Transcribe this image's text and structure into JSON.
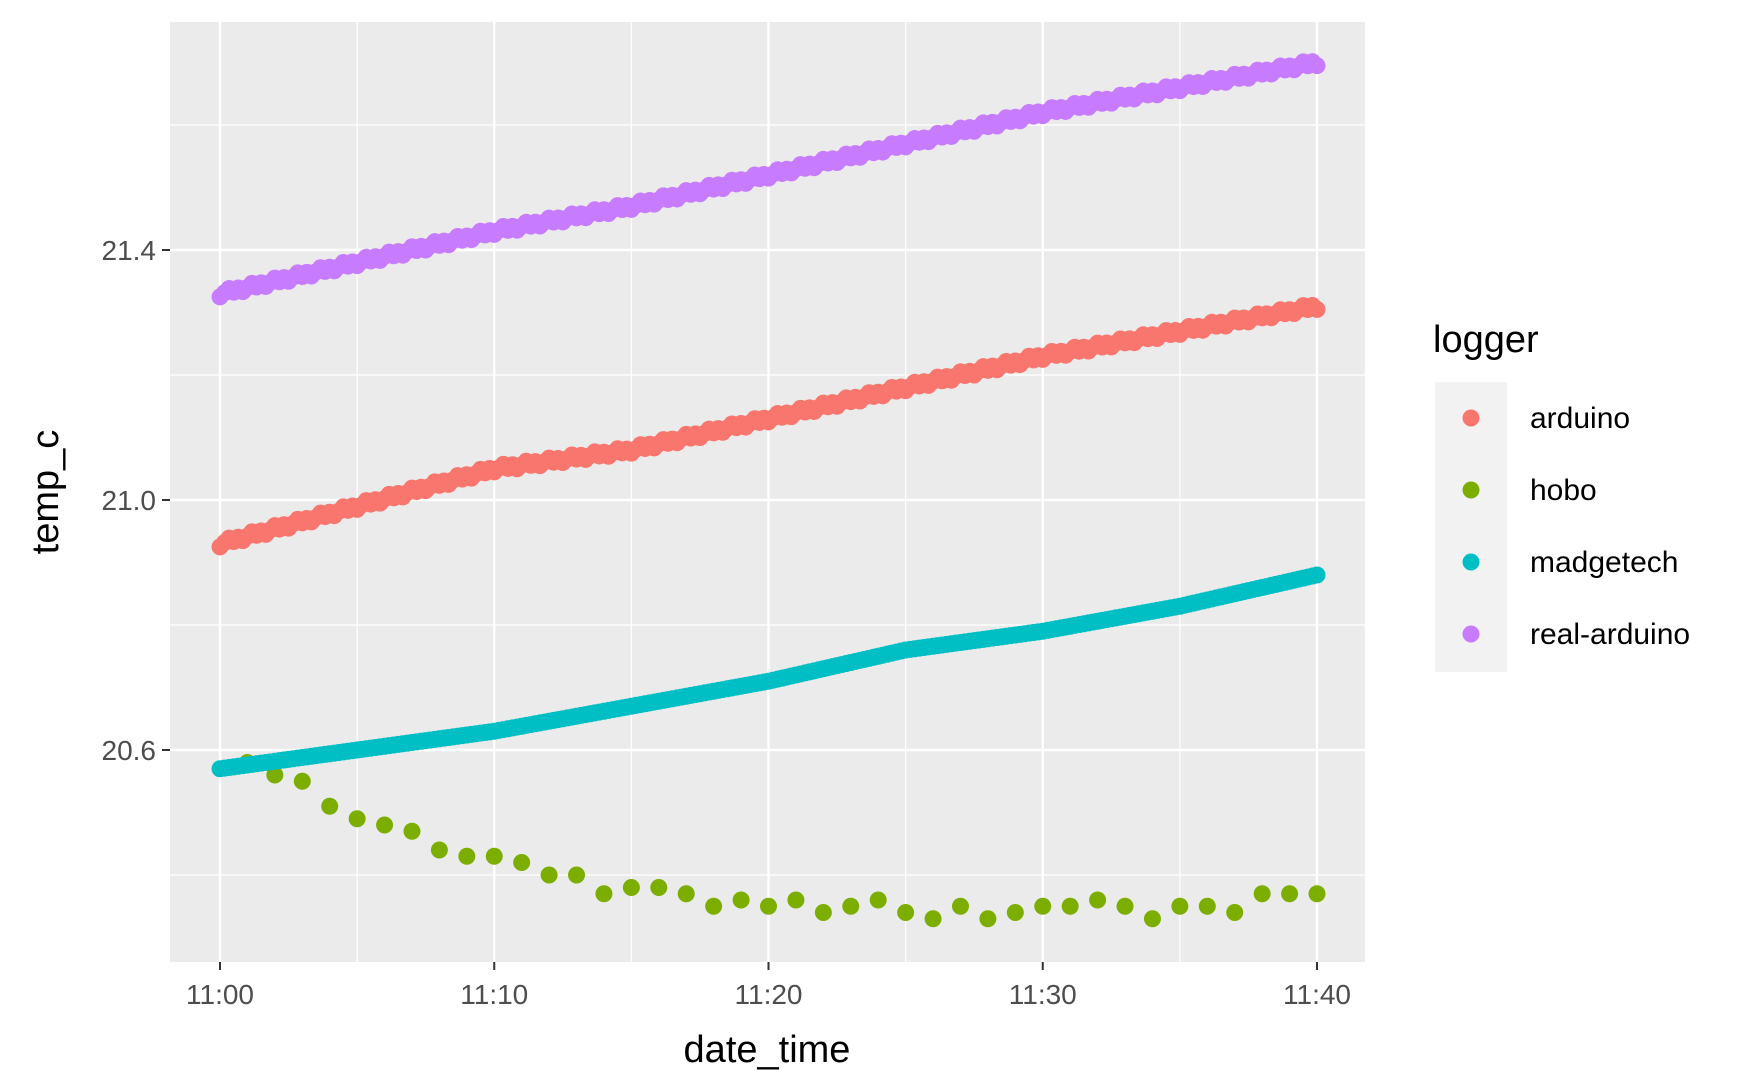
{
  "chart_data": {
    "type": "scatter",
    "title": "",
    "xlabel": "date_time",
    "ylabel": "temp_c",
    "x_ticks": [
      "11:00",
      "11:10",
      "11:20",
      "11:30",
      "11:40"
    ],
    "x_tick_minutes": [
      0,
      10,
      20,
      30,
      40
    ],
    "x_range": [
      "11:00",
      "11:40"
    ],
    "y_ticks": [
      20.6,
      21.0,
      21.4
    ],
    "y_range": [
      20.28,
      21.78
    ],
    "grid": true,
    "legend": {
      "title": "logger",
      "placement": "right",
      "entries": [
        "arduino",
        "hobo",
        "madgetech",
        "real-arduino"
      ]
    },
    "series": [
      {
        "name": "arduino",
        "color": "#F8766D",
        "kind": "dense",
        "x_time": [
          "11:00",
          "11:05",
          "11:10",
          "11:15",
          "11:20",
          "11:25",
          "11:30",
          "11:35",
          "11:40"
        ],
        "y": [
          20.93,
          20.99,
          21.05,
          21.08,
          21.13,
          21.18,
          21.23,
          21.27,
          21.31
        ]
      },
      {
        "name": "hobo",
        "color": "#7CAE00",
        "kind": "sparse",
        "x_time": [
          "11:01",
          "11:02",
          "11:03",
          "11:04",
          "11:05",
          "11:06",
          "11:07",
          "11:08",
          "11:09",
          "11:10",
          "11:11",
          "11:12",
          "11:13",
          "11:14",
          "11:15",
          "11:16",
          "11:17",
          "11:18",
          "11:19",
          "11:20",
          "11:21",
          "11:22",
          "11:23",
          "11:24",
          "11:25",
          "11:26",
          "11:27",
          "11:28",
          "11:29",
          "11:30",
          "11:31",
          "11:32",
          "11:33",
          "11:34",
          "11:35",
          "11:36",
          "11:37",
          "11:38",
          "11:39",
          "11:40"
        ],
        "y": [
          20.58,
          20.56,
          20.55,
          20.51,
          20.49,
          20.48,
          20.47,
          20.44,
          20.43,
          20.43,
          20.42,
          20.4,
          20.4,
          20.37,
          20.38,
          20.38,
          20.37,
          20.35,
          20.36,
          20.35,
          20.36,
          20.34,
          20.35,
          20.36,
          20.34,
          20.33,
          20.35,
          20.33,
          20.34,
          20.35,
          20.35,
          20.36,
          20.35,
          20.33,
          20.35,
          20.35,
          20.34,
          20.37,
          20.37,
          20.37
        ]
      },
      {
        "name": "madgetech",
        "color": "#00BFC4",
        "kind": "dense",
        "x_time": [
          "11:00",
          "11:05",
          "11:10",
          "11:15",
          "11:20",
          "11:25",
          "11:30",
          "11:35",
          "11:40"
        ],
        "y": [
          20.57,
          20.6,
          20.63,
          20.67,
          20.71,
          20.76,
          20.79,
          20.83,
          20.88
        ]
      },
      {
        "name": "real-arduino",
        "color": "#C77CFF",
        "kind": "dense",
        "x_time": [
          "11:00",
          "11:05",
          "11:10",
          "11:15",
          "11:20",
          "11:25",
          "11:30",
          "11:35",
          "11:40"
        ],
        "y": [
          21.33,
          21.38,
          21.43,
          21.47,
          21.52,
          21.57,
          21.62,
          21.66,
          21.7
        ]
      }
    ]
  }
}
